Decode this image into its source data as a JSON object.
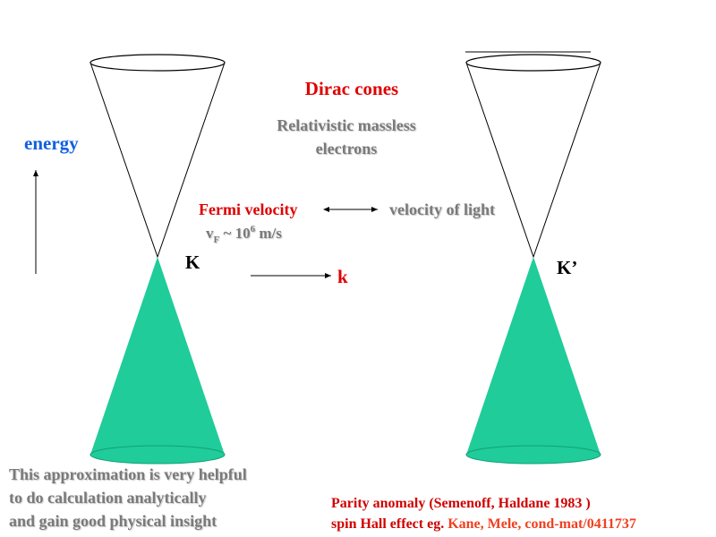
{
  "title": "Dirac cones",
  "subtitle": [
    "Relativistic massless",
    "electrons"
  ],
  "energy_label": "energy",
  "fermi_velocity": "Fermi velocity",
  "velocity_of_light": "velocity of light",
  "vf_formula": {
    "v": "v",
    "sub": "F",
    "mid": " ~ 10",
    "sup": "6",
    "unit": " m/s"
  },
  "point_k": "K",
  "point_k_prime": "K’",
  "momentum_label": "k",
  "note_lines": [
    "This approximation is very helpful",
    "to do calculation analytically",
    "and gain good physical insight"
  ],
  "references": {
    "line1": "Parity anomaly (Semenoff, Haldane 1983 )",
    "line2_prefix": "spin Hall effect eg. ",
    "line2_citation": "Kane, Mele, cond-mat/0411737"
  }
}
